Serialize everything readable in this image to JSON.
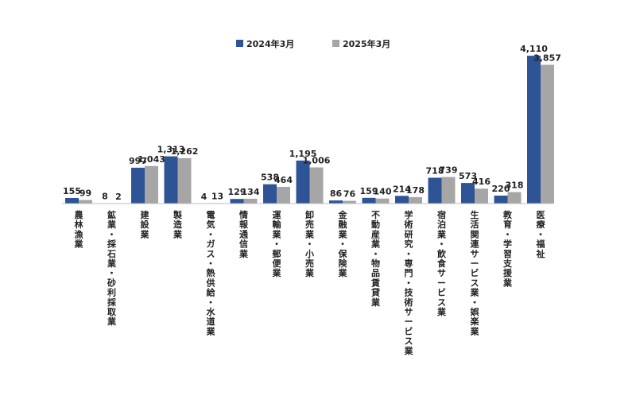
{
  "chart_data": {
    "type": "bar",
    "title": "",
    "xlabel": "",
    "ylabel": "",
    "ylim": [
      0,
      4200
    ],
    "grid": false,
    "legend_position": "top",
    "categories": [
      "農林漁業",
      "鉱業・採石業・砂利採取業",
      "建設業",
      "製造業",
      "電気・ガス・熱供給・水道業",
      "情報通信業",
      "運輸業・郵便業",
      "卸売業・小売業",
      "金融業・保険業",
      "不動産業・物品賃貸業",
      "学術研究・専門・技術サービス業",
      "宿泊業・飲食サービス業",
      "生活関連サービス業・娯楽業",
      "教育・学習支援業",
      "医療・福祉"
    ],
    "series": [
      {
        "name": "2024年3月",
        "color": "#2f5496",
        "values": [
          155,
          8,
          997,
          1313,
          4,
          129,
          538,
          1195,
          86,
          159,
          214,
          718,
          573,
          220,
          4110
        ],
        "labels": [
          "155",
          "8",
          "997",
          "1,313",
          "4",
          "129",
          "538",
          "1,195",
          "86",
          "159",
          "214",
          "718",
          "573",
          "220",
          "4,110"
        ]
      },
      {
        "name": "2025年3月",
        "color": "#a6a6a6",
        "values": [
          99,
          2,
          1043,
          1262,
          13,
          134,
          464,
          1006,
          76,
          140,
          178,
          739,
          416,
          318,
          3857
        ],
        "labels": [
          "99",
          "2",
          "1,043",
          "1,262",
          "13",
          "134",
          "464",
          "1,006",
          "76",
          "140",
          "178",
          "739",
          "416",
          "318",
          "3,857"
        ]
      }
    ]
  }
}
